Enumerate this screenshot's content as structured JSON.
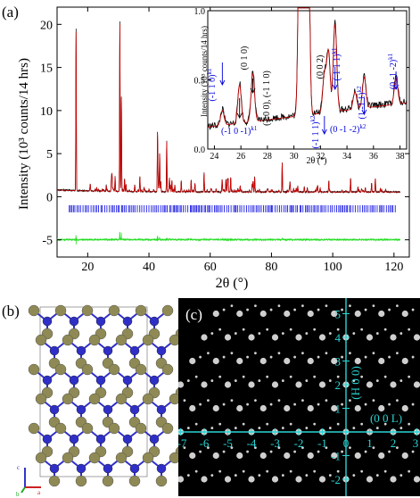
{
  "panel_labels": {
    "a": "(a)",
    "b": "(b)",
    "c": "(c)"
  },
  "chart_data": [
    {
      "type": "line",
      "panel": "(a)",
      "xlabel": "2θ (°)",
      "ylabel": "Intensity (10³ counts/14 hrs)",
      "xlim": [
        10,
        125
      ],
      "ylim": [
        -7,
        22
      ],
      "x_ticks": [
        20,
        40,
        60,
        80,
        100,
        120
      ],
      "y_ticks": [
        -5,
        0,
        5,
        10,
        15,
        20
      ],
      "series": [
        {
          "role": "observed",
          "color": "#000000"
        },
        {
          "role": "calculated",
          "color": "#cc0000"
        },
        {
          "role": "bragg-positions",
          "color": "#0000dd",
          "offset": -1.4
        },
        {
          "role": "difference",
          "color": "#22dd22",
          "offset": -5
        }
      ],
      "peaks": [
        {
          "x": 16.2,
          "y": 19.3
        },
        {
          "x": 30.5,
          "y": 20.3
        },
        {
          "x": 31.0,
          "y": 11.5
        },
        {
          "x": 42.8,
          "y": 7.3
        },
        {
          "x": 43.5,
          "y": 5.0
        },
        {
          "x": 45.8,
          "y": 6.4
        },
        {
          "x": 47.5,
          "y": 1.8
        },
        {
          "x": 55.0,
          "y": 1.5
        },
        {
          "x": 58.0,
          "y": 2.7
        },
        {
          "x": 65.2,
          "y": 1.1
        },
        {
          "x": 83.5,
          "y": 3.0
        }
      ],
      "inset": {
        "xlabel": "2θ (°)",
        "ylabel": "Intensity (10³ counts/14 hrs)",
        "xlim": [
          23.5,
          38.5
        ],
        "ylim": [
          0.0,
          1.0
        ],
        "x_ticks": [
          24,
          26,
          28,
          30,
          32,
          34,
          36,
          38
        ],
        "y_ticks": [
          0.0,
          0.5,
          1.0
        ],
        "annotations": [
          {
            "text": "(-1 1 0)",
            "sup": "k1",
            "x": 24.6,
            "color": "#0000dd"
          },
          {
            "text": "(-1 0 -1)",
            "sup": "k1",
            "x": 25.5,
            "color": "#0000dd"
          },
          {
            "text": "(0 1 0)",
            "sup": "",
            "x": 25.9,
            "color": "#000000"
          },
          {
            "text": "(1 0 0), (-1 1 0)",
            "sup": "",
            "x": 26.9,
            "color": "#000000"
          },
          {
            "text": "(-1 1 1)",
            "sup": "k2",
            "x": 32.3,
            "color": "#0000dd"
          },
          {
            "text": "(0 0 2)",
            "sup": "",
            "x": 32.5,
            "color": "#000000"
          },
          {
            "text": "(-1 1 1)",
            "sup": "k1",
            "x": 33.1,
            "color": "#0000dd"
          },
          {
            "text": "(0 -1 -2)",
            "sup": "k2",
            "x": 34.6,
            "color": "#0000dd"
          },
          {
            "text": "(1 -1 1)",
            "sup": "k2",
            "x": 35.3,
            "color": "#0000dd"
          },
          {
            "text": "(0 -1 -2)",
            "sup": "k1",
            "x": 37.7,
            "color": "#0000dd"
          }
        ]
      }
    },
    {
      "type": "scatter",
      "panel": "(c)",
      "x_axis_label": "(0 0 L)",
      "y_axis_label": "(H 0 0)",
      "xlim": [
        -8,
        4
      ],
      "ylim": [
        -2,
        5
      ],
      "x_ticks": [
        -8,
        -7,
        -6,
        -5,
        -4,
        -3,
        -2,
        -1,
        0,
        1,
        2,
        3,
        4
      ],
      "y_ticks": [
        -2,
        -1,
        1,
        2,
        3,
        4,
        5
      ],
      "axis_color": "#2ad4d4",
      "background": "#000000"
    }
  ],
  "structure": {
    "atom_colors": {
      "metal": "#2f2fc8",
      "anion": "#8f8a55"
    },
    "axes": [
      "c",
      "b",
      "a"
    ]
  }
}
